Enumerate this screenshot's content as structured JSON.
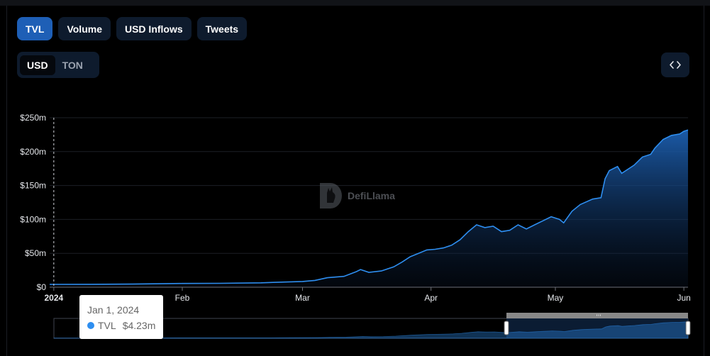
{
  "tabs": [
    {
      "label": "TVL",
      "active": true
    },
    {
      "label": "Volume",
      "active": false
    },
    {
      "label": "USD Inflows",
      "active": false
    },
    {
      "label": "Tweets",
      "active": false
    }
  ],
  "denomination": [
    {
      "label": "USD",
      "active": true
    },
    {
      "label": "TON",
      "active": false
    }
  ],
  "embed_icon": "code-brackets-icon",
  "watermark": {
    "text": "DefiLlama",
    "icon": "llama-logo-icon"
  },
  "tooltip": {
    "date": "Jan 1, 2024",
    "series": "TVL",
    "value": "$4.23m",
    "color": "#2e8ef0"
  },
  "colors": {
    "accent": "#1e5fb6",
    "line": "#2e8ef0"
  },
  "chart_data": {
    "type": "area",
    "series": [
      {
        "name": "TVL",
        "color": "#2e8ef0"
      }
    ],
    "y_unit": "USD",
    "ylim": [
      0,
      250000000
    ],
    "xlim": [
      "2023-12-31",
      "2024-06-02"
    ],
    "yticks": [
      {
        "value": 0,
        "label": "$0"
      },
      {
        "value": 50000000,
        "label": "$50m"
      },
      {
        "value": 100000000,
        "label": "$100m"
      },
      {
        "value": 150000000,
        "label": "$150m"
      },
      {
        "value": 200000000,
        "label": "$200m"
      },
      {
        "value": 250000000,
        "label": "$250m"
      }
    ],
    "xticks": [
      {
        "date": "2024-01-01",
        "label": "2024",
        "bold": true
      },
      {
        "date": "2024-02-01",
        "label": "Feb",
        "bold": false
      },
      {
        "date": "2024-03-01",
        "label": "Mar",
        "bold": false
      },
      {
        "date": "2024-04-01",
        "label": "Apr",
        "bold": false
      },
      {
        "date": "2024-05-01",
        "label": "May",
        "bold": false
      },
      {
        "date": "2024-06-01",
        "label": "Jun",
        "bold": false
      }
    ],
    "grid": true,
    "crosshair_date": "2024-01-01",
    "points": [
      [
        "2023-12-31",
        4.2
      ],
      [
        "2024-01-01",
        4.23
      ],
      [
        "2024-01-10",
        4.3
      ],
      [
        "2024-01-20",
        4.6
      ],
      [
        "2024-02-01",
        5.5
      ],
      [
        "2024-02-10",
        5.8
      ],
      [
        "2024-02-20",
        6.5
      ],
      [
        "2024-02-25",
        7.5
      ],
      [
        "2024-03-01",
        8.5
      ],
      [
        "2024-03-04",
        10
      ],
      [
        "2024-03-07",
        14
      ],
      [
        "2024-03-11",
        16
      ],
      [
        "2024-03-14",
        23
      ],
      [
        "2024-03-15",
        26
      ],
      [
        "2024-03-17",
        22
      ],
      [
        "2024-03-20",
        24
      ],
      [
        "2024-03-23",
        30
      ],
      [
        "2024-03-25",
        37
      ],
      [
        "2024-03-27",
        45
      ],
      [
        "2024-03-29",
        50
      ],
      [
        "2024-03-31",
        55
      ],
      [
        "2024-04-02",
        56
      ],
      [
        "2024-04-04",
        58
      ],
      [
        "2024-04-06",
        62
      ],
      [
        "2024-04-08",
        70
      ],
      [
        "2024-04-10",
        82
      ],
      [
        "2024-04-12",
        92
      ],
      [
        "2024-04-14",
        88
      ],
      [
        "2024-04-16",
        90
      ],
      [
        "2024-04-18",
        82
      ],
      [
        "2024-04-20",
        84
      ],
      [
        "2024-04-22",
        92
      ],
      [
        "2024-04-24",
        86
      ],
      [
        "2024-04-26",
        92
      ],
      [
        "2024-04-28",
        98
      ],
      [
        "2024-04-30",
        104
      ],
      [
        "2024-05-02",
        100
      ],
      [
        "2024-05-03",
        95
      ],
      [
        "2024-05-05",
        112
      ],
      [
        "2024-05-07",
        122
      ],
      [
        "2024-05-10",
        130
      ],
      [
        "2024-05-12",
        132
      ],
      [
        "2024-05-13",
        160
      ],
      [
        "2024-05-14",
        172
      ],
      [
        "2024-05-16",
        178
      ],
      [
        "2024-05-17",
        168
      ],
      [
        "2024-05-20",
        180
      ],
      [
        "2024-05-22",
        192
      ],
      [
        "2024-05-24",
        196
      ],
      [
        "2024-05-25",
        205
      ],
      [
        "2024-05-27",
        218
      ],
      [
        "2024-05-29",
        224
      ],
      [
        "2024-05-31",
        226
      ],
      [
        "2024-06-01",
        230
      ],
      [
        "2024-06-02",
        232
      ]
    ],
    "points_unit": "millions USD"
  }
}
